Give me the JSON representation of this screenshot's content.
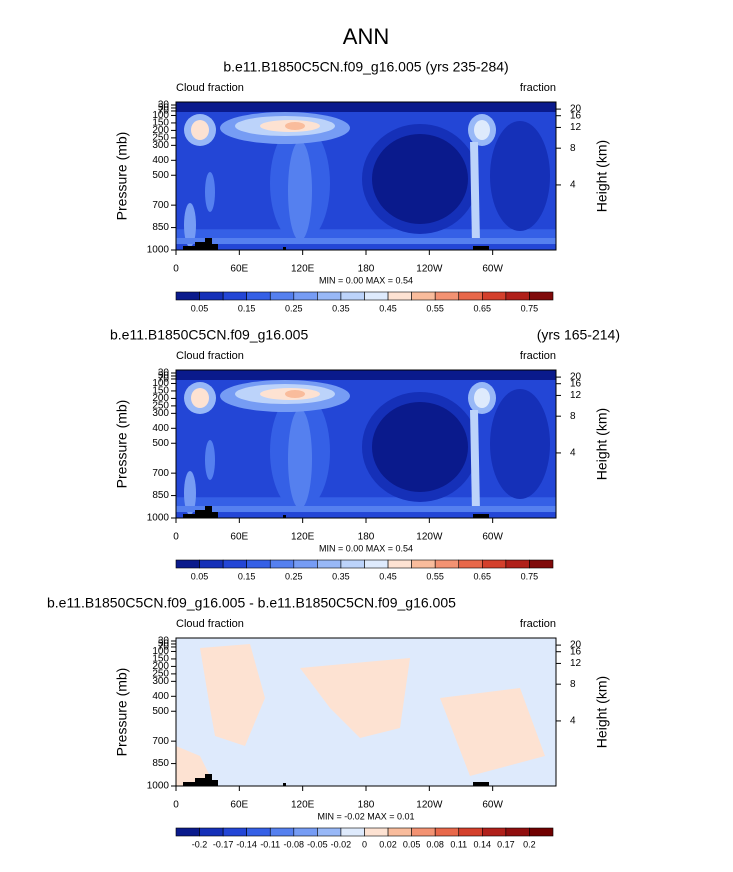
{
  "title": "ANN",
  "chart_data": [
    {
      "type": "contour",
      "title_center": "b.e11.B1850C5CN.f09_g16.005 (yrs 235-284)",
      "left_label": "Cloud fraction",
      "right_label": "fraction",
      "ylabel": "Pressure (mb)",
      "y2label": "Height (km)",
      "stats": "MIN =  0.00  MAX =  0.54",
      "xlim": [
        0,
        360
      ],
      "xticks": [
        0,
        {
          "value": 60,
          "label": "60E"
        },
        {
          "value": 120,
          "label": "120E"
        },
        180,
        {
          "value": 240,
          "label": "120W"
        },
        {
          "value": 300,
          "label": "60W"
        }
      ],
      "ylim": [
        1000,
        10
      ],
      "yticks": [
        30,
        50,
        70,
        100,
        150,
        200,
        250,
        300,
        400,
        500,
        700,
        850,
        1000
      ],
      "y2ticks": [
        4,
        8,
        12,
        16,
        20
      ],
      "colorbar": {
        "labels": [
          0.05,
          0.15,
          0.25,
          0.35,
          0.45,
          0.55,
          0.65,
          0.75
        ],
        "colors": [
          "#0a1a8c",
          "#1530b8",
          "#2346d6",
          "#3560e6",
          "#5580ef",
          "#769cf4",
          "#98b8f7",
          "#bcd3fa",
          "#deeafc",
          "#fde2d2",
          "#f9bc9c",
          "#f39272",
          "#e8684a",
          "#d4402c",
          "#b0201a",
          "#800a0a"
        ]
      }
    },
    {
      "type": "contour",
      "title_left": "b.e11.B1850C5CN.f09_g16.005",
      "title_right": "(yrs 165-214)",
      "left_label": "Cloud fraction",
      "right_label": "fraction",
      "ylabel": "Pressure (mb)",
      "y2label": "Height (km)",
      "stats": "MIN =  0.00  MAX =  0.54",
      "xlim": [
        0,
        360
      ],
      "xticks": [
        0,
        {
          "value": 60,
          "label": "60E"
        },
        {
          "value": 120,
          "label": "120E"
        },
        180,
        {
          "value": 240,
          "label": "120W"
        },
        {
          "value": 300,
          "label": "60W"
        }
      ],
      "ylim": [
        1000,
        10
      ],
      "yticks": [
        30,
        50,
        70,
        100,
        150,
        200,
        250,
        300,
        400,
        500,
        700,
        850,
        1000
      ],
      "y2ticks": [
        4,
        8,
        12,
        16,
        20
      ],
      "colorbar": {
        "labels": [
          0.05,
          0.15,
          0.25,
          0.35,
          0.45,
          0.55,
          0.65,
          0.75
        ],
        "colors": [
          "#0a1a8c",
          "#1530b8",
          "#2346d6",
          "#3560e6",
          "#5580ef",
          "#769cf4",
          "#98b8f7",
          "#bcd3fa",
          "#deeafc",
          "#fde2d2",
          "#f9bc9c",
          "#f39272",
          "#e8684a",
          "#d4402c",
          "#b0201a",
          "#800a0a"
        ]
      }
    },
    {
      "type": "contour",
      "title_left": "b.e11.B1850C5CN.f09_g16.005 - b.e11.B1850C5CN.f09_g16.005",
      "left_label": "Cloud fraction",
      "right_label": "fraction",
      "ylabel": "Pressure (mb)",
      "y2label": "Height (km)",
      "stats": "MIN = -0.02  MAX =  0.01",
      "xlim": [
        0,
        360
      ],
      "xticks": [
        0,
        {
          "value": 60,
          "label": "60E"
        },
        {
          "value": 120,
          "label": "120E"
        },
        180,
        {
          "value": 240,
          "label": "120W"
        },
        {
          "value": 300,
          "label": "60W"
        }
      ],
      "ylim": [
        1000,
        10
      ],
      "yticks": [
        30,
        50,
        70,
        100,
        150,
        200,
        250,
        300,
        400,
        500,
        700,
        850,
        1000
      ],
      "y2ticks": [
        4,
        8,
        12,
        16,
        20
      ],
      "colorbar": {
        "labels": [
          -0.2,
          -0.17,
          -0.14,
          -0.11,
          -0.08,
          -0.05,
          -0.02,
          0,
          0.02,
          0.05,
          0.08,
          0.11,
          0.14,
          0.17,
          0.2
        ],
        "colors": [
          "#0a1a8c",
          "#1530b8",
          "#2346d6",
          "#3560e6",
          "#5580ef",
          "#769cf4",
          "#98b8f7",
          "#deeafc",
          "#fde2d2",
          "#f9bc9c",
          "#f39272",
          "#e8684a",
          "#d4402c",
          "#b0201a",
          "#900e0e",
          "#700000"
        ]
      }
    }
  ]
}
